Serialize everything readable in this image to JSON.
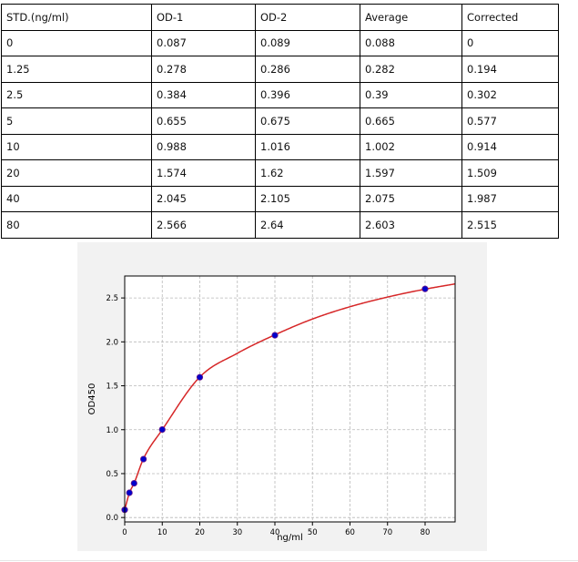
{
  "table": {
    "headers": [
      "STD.(ng/ml)",
      "OD-1",
      "OD-2",
      "Average",
      "Corrected"
    ],
    "rows": [
      [
        "0",
        "0.087",
        "0.089",
        "0.088",
        "0"
      ],
      [
        "1.25",
        "0.278",
        "0.286",
        "0.282",
        "0.194"
      ],
      [
        "2.5",
        "0.384",
        "0.396",
        "0.39",
        "0.302"
      ],
      [
        "5",
        "0.655",
        "0.675",
        "0.665",
        "0.577"
      ],
      [
        "10",
        "0.988",
        "1.016",
        "1.002",
        "0.914"
      ],
      [
        "20",
        "1.574",
        "1.62",
        "1.597",
        "1.509"
      ],
      [
        "40",
        "2.045",
        "2.105",
        "2.075",
        "1.987"
      ],
      [
        "80",
        "2.566",
        "2.64",
        "2.603",
        "2.515"
      ]
    ]
  },
  "chart_data": {
    "type": "scatter",
    "title": "",
    "xlabel": "ng/ml",
    "ylabel": "OD450",
    "xlim": [
      0,
      88
    ],
    "ylim": [
      -0.05,
      2.75
    ],
    "xticks": [
      "0",
      "10",
      "20",
      "30",
      "40",
      "50",
      "60",
      "70",
      "80"
    ],
    "yticks": [
      "0.0",
      "0.5",
      "1.0",
      "1.5",
      "2.0",
      "2.5"
    ],
    "grid": true,
    "series": [
      {
        "kind": "points",
        "x": [
          0,
          1.25,
          2.5,
          5,
          10,
          20,
          40,
          80
        ],
        "y": [
          0.088,
          0.282,
          0.39,
          0.665,
          1.002,
          1.597,
          2.075,
          2.603
        ]
      },
      {
        "kind": "fitted-curve",
        "x": [
          0,
          1.25,
          2.5,
          5,
          10,
          20,
          30,
          40,
          50,
          60,
          70,
          80,
          88
        ],
        "y": [
          0.088,
          0.28,
          0.39,
          0.67,
          1.0,
          1.6,
          1.87,
          2.08,
          2.26,
          2.4,
          2.51,
          2.6,
          2.66
        ]
      }
    ],
    "colors": {
      "points": "#0000cc",
      "point_edge": "#6a1a8a",
      "curve": "#d62728",
      "grid": "#b8b8b8"
    }
  }
}
